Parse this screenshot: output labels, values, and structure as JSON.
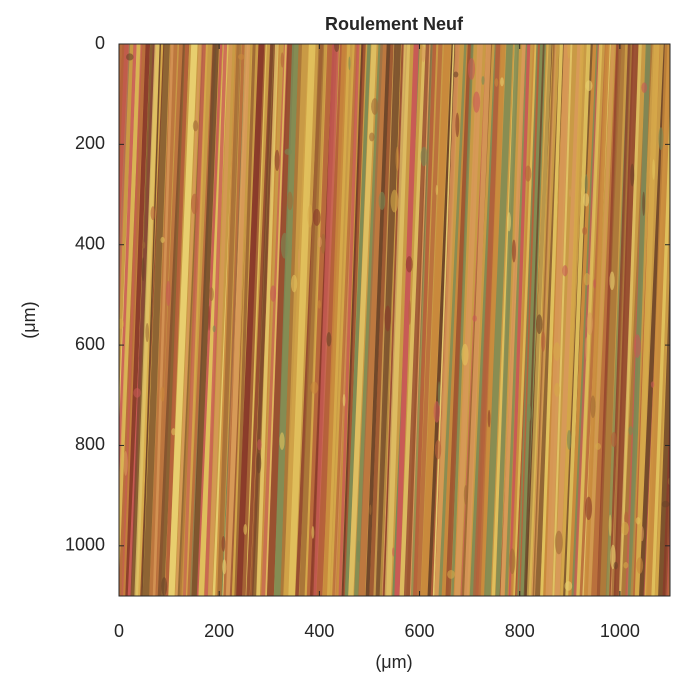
{
  "chart_data": {
    "type": "image",
    "title": "Roulement Neuf",
    "xlabel": "(μm)",
    "ylabel": "(μm)",
    "xlim": [
      0,
      1100
    ],
    "ylim": [
      0,
      1100
    ],
    "ydir": "reverse",
    "xticks": [
      0,
      200,
      400,
      600,
      800,
      1000
    ],
    "yticks": [
      0,
      200,
      400,
      600,
      800,
      1000
    ]
  }
}
